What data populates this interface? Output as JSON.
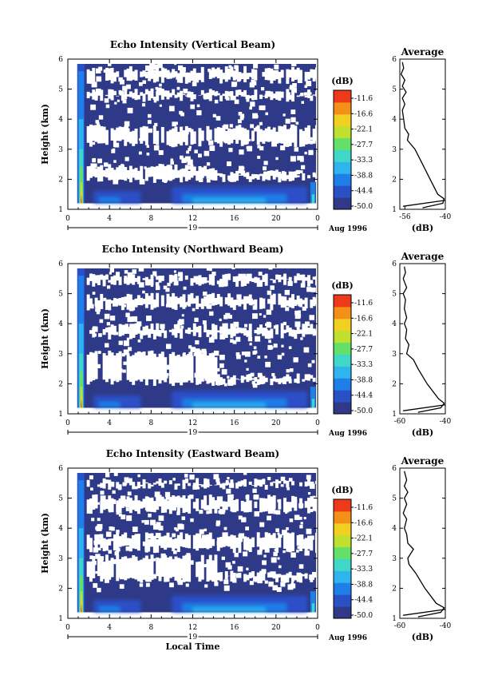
{
  "chart_data": [
    {
      "type": "heatmap",
      "title": "Echo Intensity (Vertical Beam)",
      "ylabel": "Height (km)",
      "xlabel": "",
      "xlim": [
        0,
        24
      ],
      "ylim": [
        1,
        6
      ],
      "x_ticks": [
        "0",
        "4",
        "8",
        "12",
        "16",
        "20",
        "0"
      ],
      "y_ticks": [
        "1",
        "2",
        "3",
        "4",
        "5",
        "6"
      ],
      "date_bar": {
        "day": "19",
        "month_year": "Aug 1996"
      },
      "colorbar": {
        "unit": "(dB)",
        "levels": [
          "-11.6",
          "-16.6",
          "-22.1",
          "-27.7",
          "-33.3",
          "-38.8",
          "-44.4",
          "-50.0"
        ]
      },
      "white_bands_km": [
        [
          2.0,
          2.4
        ],
        [
          3.2,
          3.7
        ],
        [
          4.7,
          4.9
        ],
        [
          5.3,
          5.65
        ]
      ],
      "average_profile": {
        "title": "Average",
        "xlabel": "(dB)",
        "x_ticks": [
          "-56",
          "-40"
        ],
        "xlim": [
          -58,
          -40
        ],
        "height_km": [
          1.05,
          1.2,
          1.35,
          1.5,
          2.0,
          2.5,
          3.0,
          3.3,
          3.5,
          3.7,
          4.0,
          4.3,
          4.5,
          4.7,
          4.9,
          5.1,
          5.3,
          5.5,
          5.7,
          5.9
        ],
        "value_db": [
          -49,
          -41,
          -40.5,
          -43,
          -46,
          -49,
          -52,
          -55,
          -54.5,
          -56,
          -56.5,
          -57,
          -56,
          -57,
          -55.5,
          -57,
          -56,
          -57.5,
          -56.5,
          -57
        ]
      }
    },
    {
      "type": "heatmap",
      "title": "Echo Intensity (Northward Beam)",
      "ylabel": "Height (km)",
      "xlabel": "",
      "xlim": [
        0,
        24
      ],
      "ylim": [
        1,
        6
      ],
      "x_ticks": [
        "0",
        "4",
        "8",
        "12",
        "16",
        "20",
        "0"
      ],
      "y_ticks": [
        "1",
        "2",
        "3",
        "4",
        "5",
        "6"
      ],
      "date_bar": {
        "day": "19",
        "month_year": "Aug 1996"
      },
      "colorbar": {
        "unit": "(dB)",
        "levels": [
          "-11.6",
          "-16.6",
          "-22.1",
          "-27.7",
          "-33.3",
          "-38.8",
          "-44.4",
          "-50.0"
        ]
      },
      "white_bands_km": [
        [
          2.05,
          3.0
        ],
        [
          3.6,
          3.9
        ],
        [
          4.55,
          4.9
        ],
        [
          5.35,
          5.55
        ]
      ],
      "average_profile": {
        "title": "Average",
        "xlabel": "(dB)",
        "x_ticks": [
          "-60",
          "-40"
        ],
        "xlim": [
          -60,
          -40
        ],
        "height_km": [
          1.05,
          1.2,
          1.35,
          1.5,
          2.0,
          2.5,
          2.8,
          3.0,
          3.3,
          3.5,
          3.8,
          4.0,
          4.2,
          4.5,
          4.8,
          5.0,
          5.2,
          5.5,
          5.7,
          5.9
        ],
        "value_db": [
          -52,
          -42,
          -40.5,
          -43,
          -48,
          -52,
          -54,
          -57,
          -56,
          -57.5,
          -57,
          -58,
          -57,
          -58,
          -57.5,
          -58.5,
          -57,
          -58.5,
          -57.5,
          -58
        ]
      }
    },
    {
      "type": "heatmap",
      "title": "Echo Intensity (Eastward Beam)",
      "ylabel": "Height (km)",
      "xlabel": "Local Time",
      "xlim": [
        0,
        24
      ],
      "ylim": [
        1,
        6
      ],
      "x_ticks": [
        "0",
        "4",
        "8",
        "12",
        "16",
        "20",
        "0"
      ],
      "y_ticks": [
        "1",
        "2",
        "3",
        "4",
        "5",
        "6"
      ],
      "date_bar": {
        "day": "19",
        "month_year": "Aug 1996"
      },
      "colorbar": {
        "unit": "(dB)",
        "levels": [
          "-11.6",
          "-16.6",
          "-22.1",
          "-27.7",
          "-33.3",
          "-38.8",
          "-44.4",
          "-50.0"
        ]
      },
      "white_bands_km": [
        [
          2.3,
          3.0
        ],
        [
          3.3,
          3.75
        ],
        [
          4.6,
          5.0
        ],
        [
          5.4,
          5.55
        ]
      ],
      "average_profile": {
        "title": "Average",
        "xlabel": "(dB)",
        "x_ticks": [
          "-60",
          "-40"
        ],
        "xlim": [
          -60,
          -40
        ],
        "height_km": [
          1.05,
          1.2,
          1.35,
          1.5,
          2.0,
          2.5,
          2.8,
          3.0,
          3.3,
          3.5,
          3.8,
          4.0,
          4.3,
          4.5,
          4.8,
          5.0,
          5.2,
          5.4,
          5.6,
          5.9
        ],
        "value_db": [
          -52,
          -42,
          -40.5,
          -44,
          -49,
          -53,
          -56,
          -56.5,
          -54,
          -56.5,
          -57,
          -58,
          -57,
          -58.5,
          -57,
          -58,
          -56.5,
          -58,
          -57,
          -58
        ]
      }
    }
  ],
  "colors": {
    "background": "#ffffff",
    "field_base": "#2e3a88",
    "colormap": [
      "#2e3a88",
      "#2a50c8",
      "#1f7ee8",
      "#2fb4f0",
      "#3fd8c8",
      "#62e06a",
      "#c0e030",
      "#f0d020",
      "#f49018",
      "#ee3a18"
    ]
  }
}
